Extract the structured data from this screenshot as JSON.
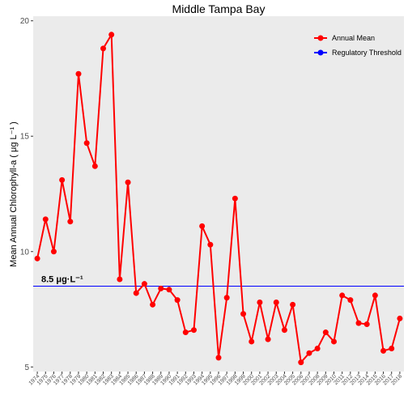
{
  "chart_data": {
    "type": "line",
    "title": "Middle Tampa Bay",
    "ylabel": "Mean Annual Chlorophyll-a ( μg L⁻¹ )",
    "xlabel": "",
    "ylim": [
      4.8,
      20.2
    ],
    "yticks": [
      5,
      10,
      15,
      20
    ],
    "grid": false,
    "legend_position": "top-right",
    "x": [
      1974,
      1975,
      1976,
      1977,
      1978,
      1979,
      1980,
      1981,
      1982,
      1983,
      1984,
      1985,
      1986,
      1987,
      1988,
      1989,
      1990,
      1991,
      1992,
      1993,
      1994,
      1995,
      1996,
      1997,
      1998,
      1999,
      2000,
      2001,
      2002,
      2003,
      2004,
      2005,
      2006,
      2007,
      2008,
      2009,
      2010,
      2011,
      2012,
      2013,
      2014,
      2015,
      2016,
      2017,
      2018
    ],
    "series": [
      {
        "name": "Annual Mean",
        "color": "#ff0000",
        "values": [
          9.7,
          11.4,
          10.0,
          13.1,
          11.3,
          17.7,
          14.7,
          13.7,
          18.8,
          19.4,
          8.8,
          13.0,
          8.2,
          8.6,
          7.7,
          8.4,
          8.35,
          7.9,
          6.5,
          6.6,
          11.1,
          10.3,
          5.4,
          8.0,
          12.3,
          7.3,
          6.1,
          7.8,
          6.2,
          7.8,
          6.6,
          7.7,
          5.2,
          5.6,
          5.8,
          6.5,
          6.1,
          8.1,
          7.9,
          6.9,
          6.85,
          8.1,
          5.7,
          5.8,
          7.1
        ]
      },
      {
        "name": "Regulatory Threshold",
        "color": "#0000ff",
        "threshold": 8.5,
        "label": "8.5 μg·L⁻¹"
      }
    ]
  }
}
